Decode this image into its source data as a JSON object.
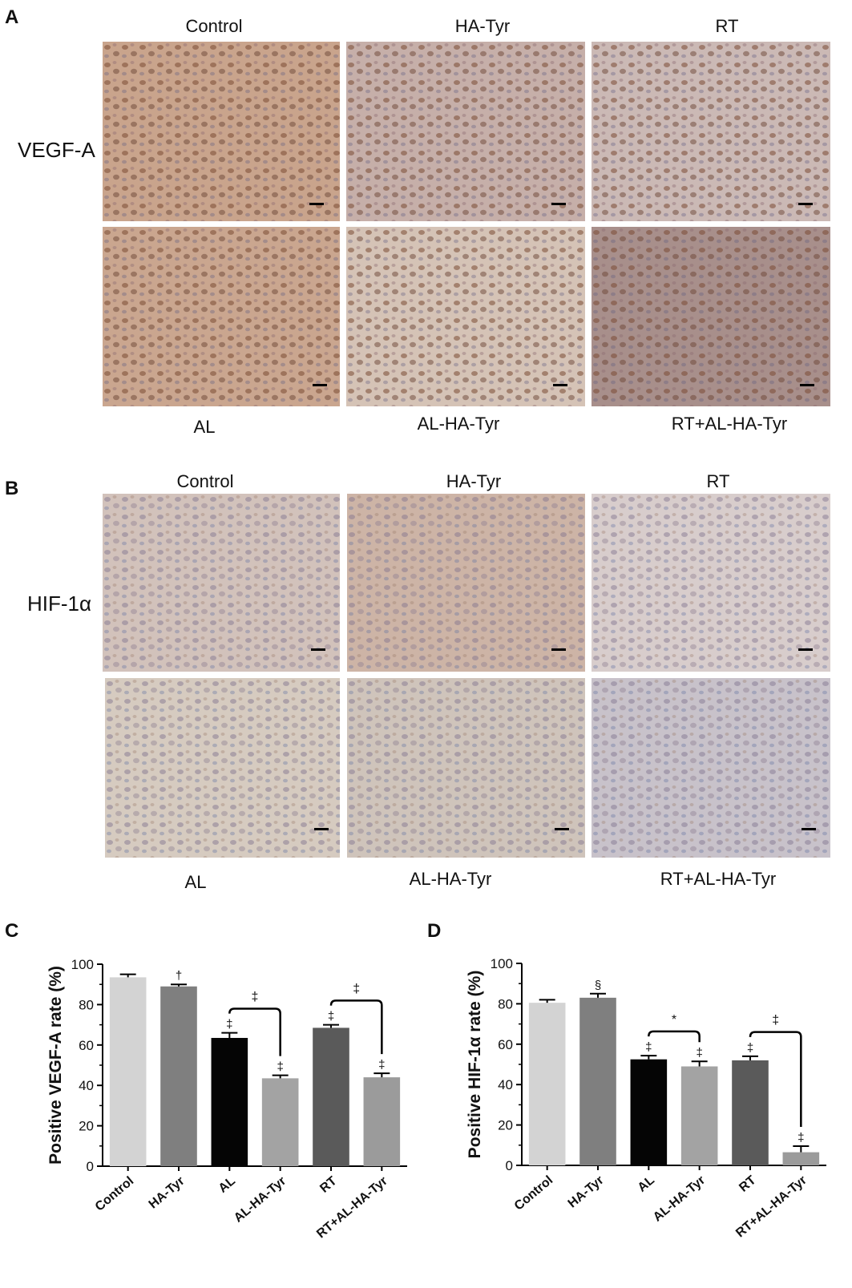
{
  "panelA": {
    "letter": "A",
    "row_label": "VEGF-A",
    "top_labels": [
      "Control",
      "HA-Tyr",
      "RT"
    ],
    "bottom_labels": [
      "AL",
      "AL-HA-Tyr",
      "RT+AL-HA-Tyr"
    ],
    "tile_colors": [
      "#c9a48c",
      "#c6afa9",
      "#cbb9b5",
      "#caa68f",
      "#d5c3b6",
      "#a88f8b"
    ]
  },
  "panelB": {
    "letter": "B",
    "row_label": "HIF-1α",
    "top_labels": [
      "Control",
      "HA-Tyr",
      "RT"
    ],
    "bottom_labels": [
      "AL",
      "AL-HA-Tyr",
      "RT+AL-HA-Tyr"
    ],
    "tile_colors": [
      "#d2c2bb",
      "#cdb4a6",
      "#d8cdcc",
      "#d6cbc0",
      "#cfc4bb",
      "#c8c2ca"
    ]
  },
  "chart_data": [
    {
      "panel": "C",
      "type": "bar",
      "ylabel": "Positive VEGF-A rate (%)",
      "ylim": [
        0,
        100
      ],
      "yticks": [
        0,
        20,
        40,
        60,
        80,
        100
      ],
      "categories": [
        "Control",
        "HA-Tyr",
        "AL",
        "AL-HA-Tyr",
        "RT",
        "RT+AL-HA-Tyr"
      ],
      "values": [
        93.5,
        89,
        63.5,
        43.5,
        68.5,
        44
      ],
      "errors": [
        1.5,
        1,
        2.5,
        1.5,
        1.5,
        2
      ],
      "colors": [
        "#d3d3d3",
        "#7f7f7f",
        "#050505",
        "#a3a3a3",
        "#5a5a5a",
        "#9b9b9b"
      ],
      "markers": [
        "",
        "†",
        "‡",
        "‡",
        "‡",
        "‡"
      ],
      "comparisons": [
        {
          "from": "AL",
          "to": "AL-HA-Tyr",
          "label": "‡"
        },
        {
          "from": "RT",
          "to": "RT+AL-HA-Tyr",
          "label": "‡"
        }
      ]
    },
    {
      "panel": "D",
      "type": "bar",
      "ylabel": "Positive HIF-1α rate (%)",
      "ylim": [
        0,
        100
      ],
      "yticks": [
        0,
        20,
        40,
        60,
        80,
        100
      ],
      "categories": [
        "Control",
        "HA-Tyr",
        "AL",
        "AL-HA-Tyr",
        "RT",
        "RT+AL-HA-Tyr"
      ],
      "values": [
        80.5,
        83,
        52.5,
        49,
        52,
        6.5
      ],
      "errors": [
        1.5,
        2,
        1.8,
        2.5,
        2,
        3
      ],
      "colors": [
        "#d3d3d3",
        "#7f7f7f",
        "#050505",
        "#a3a3a3",
        "#5a5a5a",
        "#9b9b9b"
      ],
      "markers": [
        "",
        "§",
        "‡",
        "‡",
        "‡",
        "‡"
      ],
      "comparisons": [
        {
          "from": "AL",
          "to": "AL-HA-Tyr",
          "label": "*"
        },
        {
          "from": "RT",
          "to": "RT+AL-HA-Tyr",
          "label": "‡"
        }
      ]
    }
  ]
}
